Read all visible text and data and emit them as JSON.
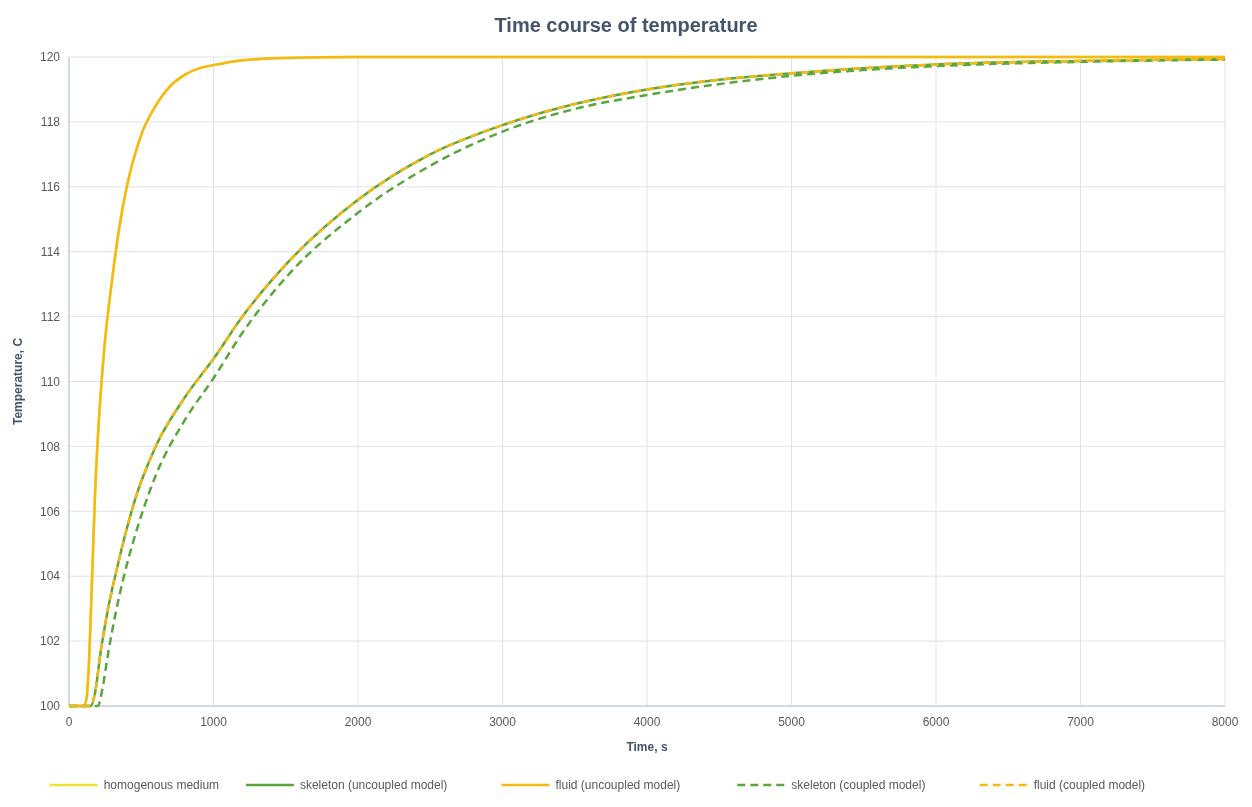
{
  "chart_data": {
    "type": "line",
    "title": "Time course of temperature",
    "xlabel": "Time, s",
    "ylabel": "Temperature, C",
    "xlim": [
      0,
      8000
    ],
    "xticks": [
      0,
      1000,
      2000,
      3000,
      4000,
      5000,
      6000,
      7000,
      8000
    ],
    "ylim": [
      100,
      120
    ],
    "yticks": [
      100,
      102,
      104,
      106,
      108,
      110,
      112,
      114,
      116,
      118,
      120
    ],
    "grid": true,
    "legend": "bottom",
    "series": [
      {
        "name": "homogenous medium",
        "color": "#f0e130",
        "line_style": "solid",
        "x": [
          0,
          100,
          120,
          140,
          160,
          180,
          200,
          240,
          300,
          350,
          400,
          500,
          600,
          700,
          800,
          900,
          1000,
          1200,
          1500,
          2000,
          8000
        ],
        "values": [
          100,
          100,
          100.2,
          101.5,
          104,
          106.5,
          108.3,
          110.8,
          113.2,
          114.8,
          116,
          117.6,
          118.5,
          119.1,
          119.45,
          119.65,
          119.75,
          119.9,
          119.97,
          120,
          120
        ]
      },
      {
        "name": "skeleton (uncoupled model)",
        "color": "#5aa63c",
        "line_style": "solid",
        "x": [
          0,
          150,
          180,
          220,
          270,
          330,
          390,
          460,
          600,
          800,
          1000,
          1200,
          1500,
          2000,
          2500,
          3000,
          3500,
          4000,
          4500,
          5000,
          6000,
          7000,
          8000
        ],
        "values": [
          100,
          100,
          100.4,
          101.7,
          103,
          104.2,
          105.3,
          106.4,
          108,
          109.5,
          110.7,
          112,
          113.6,
          115.6,
          117,
          117.9,
          118.55,
          119,
          119.3,
          119.5,
          119.77,
          119.88,
          119.94
        ]
      },
      {
        "name": "fluid (uncoupled model)",
        "color": "#f5b914",
        "line_style": "solid",
        "x": [
          0,
          100,
          120,
          140,
          160,
          180,
          200,
          240,
          300,
          350,
          400,
          500,
          600,
          700,
          800,
          900,
          1000,
          1200,
          1500,
          2000,
          8000
        ],
        "values": [
          100,
          100,
          100.2,
          101.5,
          104,
          106.5,
          108.3,
          110.8,
          113.2,
          114.8,
          116,
          117.6,
          118.5,
          119.1,
          119.45,
          119.65,
          119.75,
          119.9,
          119.97,
          120,
          120
        ]
      },
      {
        "name": "skeleton (coupled model)",
        "color": "#5aa63c",
        "line_style": "dashed",
        "x": [
          0,
          200,
          230,
          270,
          320,
          380,
          440,
          510,
          600,
          800,
          1000,
          1200,
          1500,
          2000,
          2500,
          3000,
          3500,
          4000,
          5000,
          6000,
          7000,
          8000
        ],
        "values": [
          100,
          100,
          100.5,
          101.6,
          102.8,
          104,
          105,
          106,
          107.1,
          108.8,
          110.1,
          111.5,
          113.2,
          115.2,
          116.65,
          117.7,
          118.4,
          118.83,
          119.42,
          119.72,
          119.85,
          119.92
        ]
      },
      {
        "name": "fluid (coupled model)",
        "color": "#f5b914",
        "line_style": "dashed",
        "x": [
          0,
          150,
          180,
          220,
          270,
          330,
          390,
          460,
          600,
          800,
          1000,
          1200,
          1500,
          2000,
          2500,
          3000,
          3500,
          4000,
          4500,
          5000,
          6000,
          7000,
          8000
        ],
        "values": [
          100,
          100,
          100.4,
          101.7,
          103,
          104.2,
          105.3,
          106.4,
          108,
          109.5,
          110.7,
          112,
          113.6,
          115.6,
          117,
          117.9,
          118.55,
          119,
          119.3,
          119.5,
          119.77,
          119.88,
          119.94
        ]
      }
    ]
  }
}
